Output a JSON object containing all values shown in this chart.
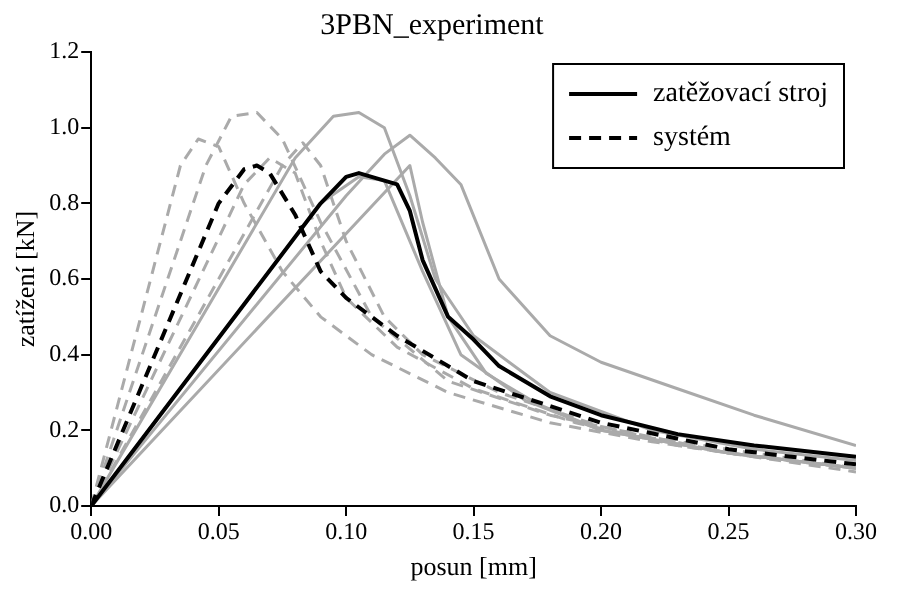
{
  "chart_data": {
    "type": "line",
    "title": "3PBN_experiment",
    "xlabel": "posun [mm]",
    "ylabel": "zatížení [kN]",
    "xlim": [
      0,
      0.3
    ],
    "ylim": [
      0,
      1.2
    ],
    "xticks": [
      {
        "value": 0,
        "label": "0.00"
      },
      {
        "value": 0.05,
        "label": "0.05"
      },
      {
        "value": 0.1,
        "label": "0.10"
      },
      {
        "value": 0.15,
        "label": "0.15"
      },
      {
        "value": 0.2,
        "label": "0.20"
      },
      {
        "value": 0.25,
        "label": "0.25"
      },
      {
        "value": 0.3,
        "label": "0.30"
      }
    ],
    "yticks": [
      {
        "value": 0,
        "label": "0.0"
      },
      {
        "value": 0.2,
        "label": "0.2"
      },
      {
        "value": 0.4,
        "label": "0.4"
      },
      {
        "value": 0.6,
        "label": "0.6"
      },
      {
        "value": 0.8,
        "label": "0.8"
      },
      {
        "value": 1,
        "label": "1.0"
      },
      {
        "value": 1.2,
        "label": "1.2"
      }
    ],
    "grid": false,
    "legend": "top right",
    "marker": "none",
    "series": [
      {
        "color": "#aaaaaa",
        "line_style": "solid",
        "x": [
          0,
          0.08,
          0.095,
          0.105,
          0.115,
          0.125,
          0.135,
          0.15,
          0.18,
          0.22,
          0.26,
          0.3
        ],
        "values": [
          0,
          0.92,
          1.03,
          1.04,
          1.0,
          0.82,
          0.6,
          0.45,
          0.3,
          0.2,
          0.15,
          0.12
        ]
      },
      {
        "color": "#aaaaaa",
        "line_style": "solid",
        "x": [
          0,
          0.1,
          0.115,
          0.125,
          0.135,
          0.145,
          0.16,
          0.18,
          0.2,
          0.23,
          0.26,
          0.3
        ],
        "values": [
          0,
          0.82,
          0.93,
          0.98,
          0.92,
          0.85,
          0.6,
          0.45,
          0.38,
          0.31,
          0.24,
          0.16
        ]
      },
      {
        "color": "#aaaaaa",
        "line_style": "solid",
        "x": [
          0,
          0.09,
          0.105,
          0.115,
          0.13,
          0.145,
          0.17,
          0.2,
          0.25,
          0.3
        ],
        "values": [
          0,
          0.8,
          0.87,
          0.86,
          0.62,
          0.4,
          0.28,
          0.2,
          0.14,
          0.1
        ]
      },
      {
        "color": "#aaaaaa",
        "line_style": "solid",
        "x": [
          0,
          0.125,
          0.13,
          0.14,
          0.155,
          0.175,
          0.2,
          0.25,
          0.3
        ],
        "values": [
          0,
          0.9,
          0.75,
          0.5,
          0.35,
          0.27,
          0.2,
          0.14,
          0.1
        ]
      },
      {
        "color": "#aaaaaa",
        "line_style": "dashed",
        "x": [
          0,
          0.035,
          0.042,
          0.05,
          0.06,
          0.075,
          0.09,
          0.11,
          0.14,
          0.18,
          0.22,
          0.26,
          0.3
        ],
        "values": [
          0,
          0.9,
          0.97,
          0.95,
          0.8,
          0.62,
          0.5,
          0.4,
          0.3,
          0.22,
          0.17,
          0.13,
          0.1
        ]
      },
      {
        "color": "#aaaaaa",
        "line_style": "dashed",
        "x": [
          0,
          0.045,
          0.055,
          0.065,
          0.075,
          0.09,
          0.11,
          0.14,
          0.18,
          0.22,
          0.26,
          0.3
        ],
        "values": [
          0,
          0.9,
          1.03,
          1.04,
          0.97,
          0.75,
          0.5,
          0.33,
          0.24,
          0.18,
          0.14,
          0.1
        ]
      },
      {
        "color": "#aaaaaa",
        "line_style": "dashed",
        "x": [
          0,
          0.06,
          0.07,
          0.08,
          0.09,
          0.1,
          0.12,
          0.15,
          0.19,
          0.23,
          0.27,
          0.3
        ],
        "values": [
          0,
          0.85,
          0.92,
          0.88,
          0.7,
          0.55,
          0.42,
          0.31,
          0.22,
          0.16,
          0.12,
          0.09
        ]
      },
      {
        "color": "#aaaaaa",
        "line_style": "dashed",
        "x": [
          0,
          0.075,
          0.083,
          0.09,
          0.1,
          0.115,
          0.13,
          0.16,
          0.2,
          0.25,
          0.3
        ],
        "values": [
          0,
          0.9,
          0.96,
          0.9,
          0.7,
          0.5,
          0.4,
          0.3,
          0.21,
          0.14,
          0.1
        ]
      },
      {
        "name": "zatěžovací stroj",
        "color": "#000000",
        "line_style": "solid",
        "x": [
          0,
          0.09,
          0.1,
          0.105,
          0.115,
          0.12,
          0.125,
          0.13,
          0.14,
          0.15,
          0.16,
          0.18,
          0.2,
          0.23,
          0.26,
          0.3
        ],
        "values": [
          0,
          0.8,
          0.87,
          0.88,
          0.86,
          0.85,
          0.78,
          0.65,
          0.5,
          0.44,
          0.37,
          0.29,
          0.24,
          0.19,
          0.16,
          0.13
        ]
      },
      {
        "name": "systém",
        "color": "#000000",
        "line_style": "dashed",
        "x": [
          0,
          0.05,
          0.06,
          0.065,
          0.07,
          0.08,
          0.09,
          0.1,
          0.12,
          0.15,
          0.2,
          0.25,
          0.3
        ],
        "values": [
          0,
          0.8,
          0.89,
          0.9,
          0.88,
          0.77,
          0.62,
          0.55,
          0.45,
          0.33,
          0.22,
          0.15,
          0.11
        ]
      }
    ]
  }
}
